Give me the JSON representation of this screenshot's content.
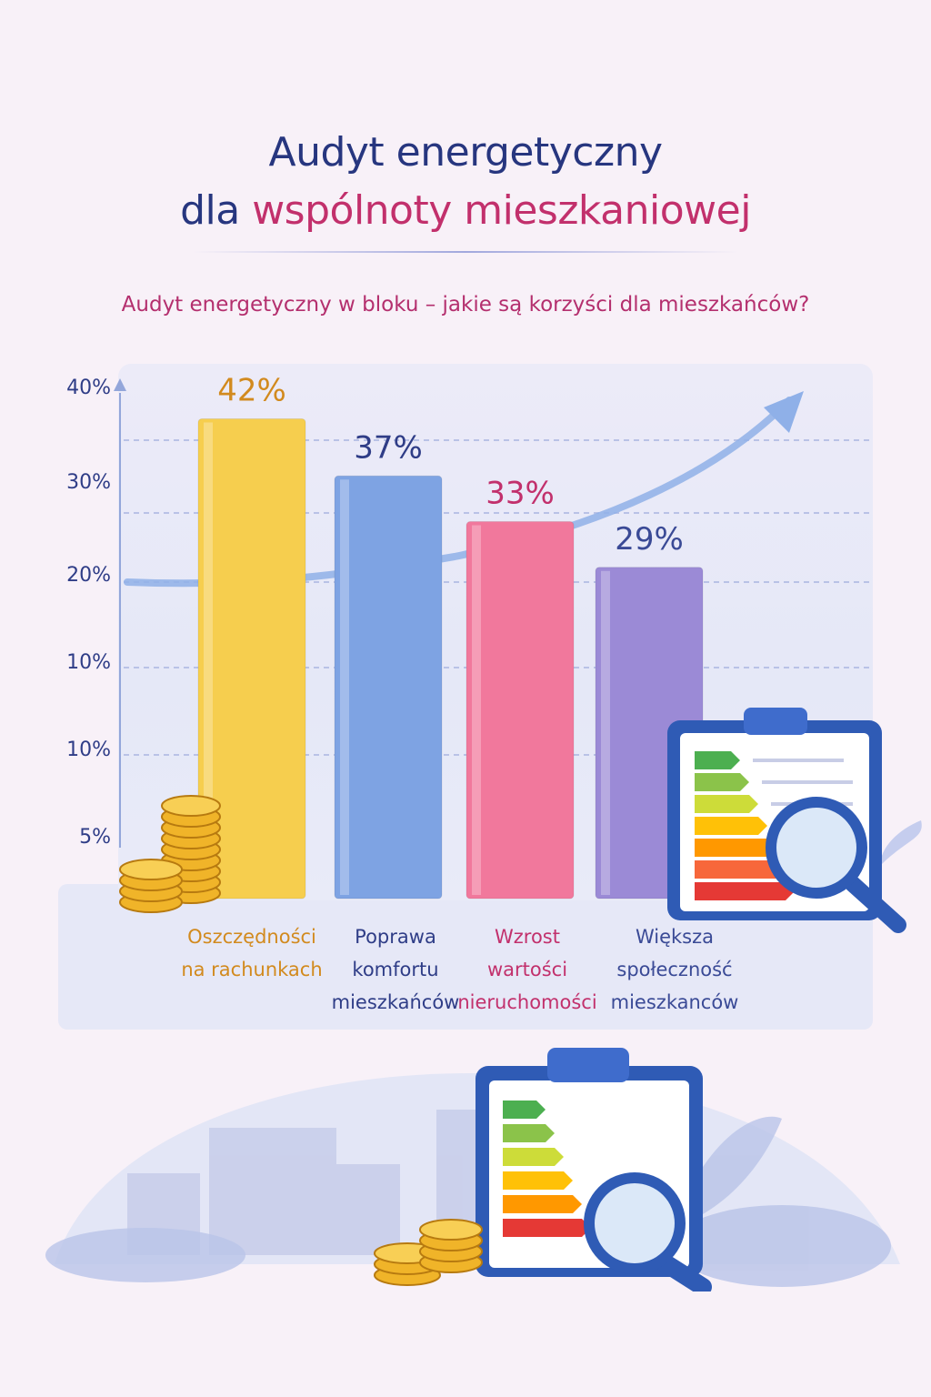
{
  "header": {
    "title_line1": "Audyt energetyczny",
    "title_line2_prefix": "dla",
    "title_line2_highlight": "wspólnoty mieszkaniowej"
  },
  "subtitle": "Audyt energetyczny w bloku – jakie są korzyści dla mieszkańców?",
  "colors": {
    "title_blue": "#27367f",
    "title_pink": "#c2306c",
    "bar_yellow": "#f6ce4e",
    "bar_blue": "#7ea3e3",
    "bar_pink": "#f1789c",
    "bar_purple": "#9b8ad6"
  },
  "chart_data": {
    "type": "bar",
    "y_tick_labels": [
      "40%",
      "30%",
      "20%",
      "10%",
      "10%",
      "5%"
    ],
    "categories": [
      [
        "Oszczędności",
        "na rachunkach"
      ],
      [
        "Poprawa",
        "komfortu",
        "mieszkańców"
      ],
      [
        "Wzrost",
        "wartości",
        "nieruchomości"
      ],
      [
        "Większa",
        "społeczność",
        "mieszkanców"
      ]
    ],
    "values": [
      42,
      37,
      33,
      29
    ],
    "value_labels": [
      "42%",
      "37%",
      "33%",
      "29%"
    ],
    "bar_colors": [
      "#f6ce4e",
      "#7ea3e3",
      "#f1789c",
      "#9b8ad6"
    ],
    "label_colors": [
      "#d28a1e",
      "#2f3d87",
      "#c2306c",
      "#3a4a96"
    ],
    "ylim": [
      0,
      50
    ],
    "grid": "horizontal dashed",
    "trend_arrow": "rising, top-right"
  },
  "illustrations": {
    "energy_classes": [
      "A",
      "B",
      "C",
      "D",
      "E",
      "F",
      "G"
    ],
    "icons": [
      "coin-stack-icon",
      "clipboard-icon",
      "energy-label-icon",
      "magnifier-icon",
      "leaf-icon",
      "buildings-icon"
    ]
  }
}
